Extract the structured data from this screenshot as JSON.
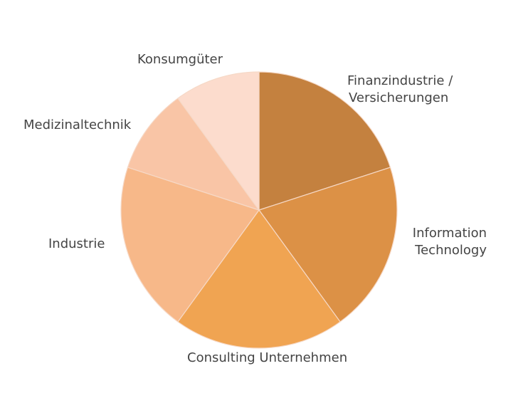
{
  "chart_data": {
    "type": "pie",
    "title": "",
    "categories": [
      "Finanzindustrie / Versicherungen",
      "Information Technology",
      "Consulting Unternehmen",
      "Industrie",
      "Medizinaltechnik",
      "Konsumgüter"
    ],
    "values": [
      20,
      20,
      20,
      20,
      10,
      10
    ],
    "colors": [
      "#c4813f",
      "#dc9146",
      "#f0a452",
      "#f7b889",
      "#f9c5a6",
      "#fcdccd"
    ],
    "labels": {
      "finanz": {
        "line1": "Finanzindustrie /",
        "line2": "Versicherungen"
      },
      "it": {
        "line1": "Information",
        "line2": "Technology"
      },
      "consulting": "Consulting Unternehmen",
      "industrie": "Industrie",
      "medizin": "Medizinaltechnik",
      "konsum": "Konsumgüter"
    }
  }
}
